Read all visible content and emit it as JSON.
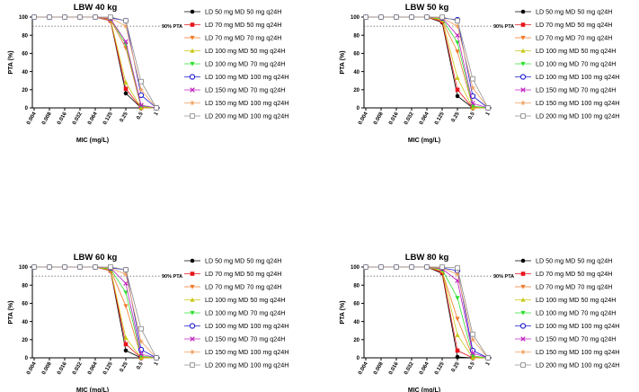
{
  "chart_data": [
    {
      "type": "line",
      "title": "LBW 40 kg",
      "xlabel": "MIC (mg/L)",
      "ylabel": "PTA (%)",
      "ylim": [
        0,
        100
      ],
      "yticks": [
        "0",
        "20",
        "40",
        "60",
        "80",
        "100"
      ],
      "categories": [
        "0.004",
        "0.008",
        "0.016",
        "0.032",
        "0.064",
        "0.125",
        "0.25",
        "0.5",
        "1"
      ],
      "reference_label": "90% PTA",
      "reference_value": 90,
      "series": [
        {
          "name": "LD 50 mg MD 50 mg q24H",
          "values": [
            100,
            100,
            100,
            100,
            100,
            96,
            16,
            0,
            0
          ]
        },
        {
          "name": "LD 70 mg MD 50 mg q24H",
          "values": [
            100,
            100,
            100,
            100,
            100,
            96,
            21,
            0,
            0
          ]
        },
        {
          "name": "LD 70 mg MD 70 mg q24H",
          "values": [
            100,
            100,
            100,
            100,
            100,
            97,
            66,
            1,
            0
          ]
        },
        {
          "name": "LD 100 mg MD 50 mg q24H",
          "values": [
            100,
            100,
            100,
            100,
            100,
            97,
            28,
            0,
            0
          ]
        },
        {
          "name": "LD 100 mg MD 70 mg q24H",
          "values": [
            100,
            100,
            100,
            100,
            100,
            98,
            70,
            2,
            0
          ]
        },
        {
          "name": "LD 100 mg MD 100 mg q24H",
          "values": [
            100,
            100,
            100,
            100,
            100,
            99,
            96,
            14,
            0
          ]
        },
        {
          "name": "LD 150 mg MD 70 mg q24H",
          "values": [
            100,
            100,
            100,
            100,
            100,
            98,
            73,
            3,
            0
          ]
        },
        {
          "name": "LD 150 mg MD 100 mg q24H",
          "values": [
            100,
            100,
            100,
            100,
            100,
            99,
            90,
            20,
            0
          ]
        },
        {
          "name": "LD 200 mg MD 100 mg q24H",
          "values": [
            100,
            100,
            100,
            100,
            100,
            100,
            96,
            29,
            0
          ]
        }
      ]
    },
    {
      "type": "line",
      "title": "LBW 50 kg",
      "xlabel": "MIC (mg/L)",
      "ylabel": "PTA (%)",
      "ylim": [
        0,
        100
      ],
      "yticks": [
        "0",
        "20",
        "40",
        "60",
        "80",
        "100"
      ],
      "categories": [
        "0.004",
        "0.008",
        "0.016",
        "0.032",
        "0.064",
        "0.125",
        "0.25",
        "0.5",
        "1"
      ],
      "reference_label": "90% PTA",
      "reference_value": 90,
      "series": [
        {
          "name": "LD 50 mg MD 50 mg q24H",
          "values": [
            100,
            100,
            100,
            100,
            100,
            94,
            13,
            0,
            0
          ]
        },
        {
          "name": "LD 70 mg MD 50 mg q24H",
          "values": [
            100,
            100,
            100,
            100,
            100,
            95,
            20,
            0,
            0
          ]
        },
        {
          "name": "LD 70 mg MD 70 mg q24H",
          "values": [
            100,
            100,
            100,
            100,
            100,
            96,
            62,
            1,
            0
          ]
        },
        {
          "name": "LD 100 mg MD 50 mg q24H",
          "values": [
            100,
            100,
            100,
            100,
            100,
            97,
            33,
            0,
            0
          ]
        },
        {
          "name": "LD 100 mg MD 70 mg q24H",
          "values": [
            100,
            100,
            100,
            100,
            100,
            98,
            72,
            2,
            0
          ]
        },
        {
          "name": "LD 100 mg MD 100 mg q24H",
          "values": [
            100,
            100,
            100,
            100,
            100,
            99,
            97,
            13,
            0
          ]
        },
        {
          "name": "LD 150 mg MD 70 mg q24H",
          "values": [
            100,
            100,
            100,
            100,
            100,
            99,
            80,
            5,
            0
          ]
        },
        {
          "name": "LD 150 mg MD 100 mg q24H",
          "values": [
            100,
            100,
            100,
            100,
            100,
            99,
            90,
            22,
            0
          ]
        },
        {
          "name": "LD 200 mg MD 100 mg q24H",
          "values": [
            100,
            100,
            100,
            100,
            100,
            100,
            96,
            32,
            0
          ]
        }
      ]
    },
    {
      "type": "line",
      "title": "LBW 60 kg",
      "xlabel": "MIC (mg/L)",
      "ylabel": "PTA (%)",
      "ylim": [
        0,
        100
      ],
      "yticks": [
        "0",
        "20",
        "40",
        "60",
        "80",
        "100"
      ],
      "categories": [
        "0.004",
        "0.008",
        "0.016",
        "0.032",
        "0.064",
        "0.125",
        "0.25",
        "0.5",
        "1"
      ],
      "reference_label": "90% PTA",
      "reference_value": 90,
      "series": [
        {
          "name": "LD 50 mg MD 50 mg q24H",
          "values": [
            100,
            100,
            100,
            100,
            100,
            96,
            8,
            0,
            0
          ]
        },
        {
          "name": "LD 70 mg MD 50 mg q24H",
          "values": [
            100,
            100,
            100,
            100,
            100,
            96,
            15,
            0,
            0
          ]
        },
        {
          "name": "LD 70 mg MD 70 mg q24H",
          "values": [
            100,
            100,
            100,
            100,
            100,
            97,
            57,
            1,
            0
          ]
        },
        {
          "name": "LD 100 mg MD 50 mg q24H",
          "values": [
            100,
            100,
            100,
            100,
            100,
            97,
            22,
            0,
            0
          ]
        },
        {
          "name": "LD 100 mg MD 70 mg q24H",
          "values": [
            100,
            100,
            100,
            100,
            100,
            98,
            72,
            2,
            0
          ]
        },
        {
          "name": "LD 100 mg MD 100 mg q24H",
          "values": [
            100,
            100,
            100,
            100,
            100,
            99,
            97,
            9,
            0
          ]
        },
        {
          "name": "LD 150 mg MD 70 mg q24H",
          "values": [
            100,
            100,
            100,
            100,
            100,
            99,
            82,
            4,
            0
          ]
        },
        {
          "name": "LD 150 mg MD 100 mg q24H",
          "values": [
            100,
            100,
            100,
            100,
            100,
            99,
            92,
            18,
            0
          ]
        },
        {
          "name": "LD 200 mg MD 100 mg q24H",
          "values": [
            100,
            100,
            100,
            100,
            100,
            100,
            97,
            32,
            0
          ]
        }
      ]
    },
    {
      "type": "line",
      "title": "LBW 80 kg",
      "xlabel": "MIC (mg/L)",
      "ylabel": "PTA (%)",
      "ylim": [
        0,
        100
      ],
      "yticks": [
        "0",
        "20",
        "40",
        "60",
        "80",
        "100"
      ],
      "categories": [
        "0.004",
        "0.008",
        "0.016",
        "0.032",
        "0.064",
        "0.125",
        "0.25",
        "0.5",
        "1"
      ],
      "reference_label": "90% PTA",
      "reference_value": 90,
      "series": [
        {
          "name": "LD 50 mg MD 50 mg q24H",
          "values": [
            100,
            100,
            100,
            100,
            100,
            93,
            1,
            0,
            0
          ]
        },
        {
          "name": "LD 70 mg MD 50 mg q24H",
          "values": [
            100,
            100,
            100,
            100,
            100,
            94,
            8,
            0,
            0
          ]
        },
        {
          "name": "LD 70 mg MD 70 mg q24H",
          "values": [
            100,
            100,
            100,
            100,
            100,
            95,
            43,
            1,
            0
          ]
        },
        {
          "name": "LD 100 mg MD 50 mg q24H",
          "values": [
            100,
            100,
            100,
            100,
            100,
            96,
            25,
            0,
            0
          ]
        },
        {
          "name": "LD 100 mg MD 70 mg q24H",
          "values": [
            100,
            100,
            100,
            100,
            100,
            97,
            66,
            2,
            0
          ]
        },
        {
          "name": "LD 100 mg MD 100 mg q24H",
          "values": [
            100,
            100,
            100,
            100,
            100,
            99,
            96,
            8,
            0
          ]
        },
        {
          "name": "LD 150 mg MD 70 mg q24H",
          "values": [
            100,
            100,
            100,
            100,
            100,
            98,
            85,
            5,
            0
          ]
        },
        {
          "name": "LD 150 mg MD 100 mg q24H",
          "values": [
            100,
            100,
            100,
            100,
            100,
            99,
            92,
            20,
            0
          ]
        },
        {
          "name": "LD 200 mg MD 100 mg q24H",
          "values": [
            100,
            100,
            100,
            100,
            100,
            100,
            99,
            26,
            0
          ]
        }
      ]
    }
  ],
  "series_style": [
    {
      "color": "#000000",
      "marker": "dot"
    },
    {
      "color": "#e8141b",
      "marker": "square"
    },
    {
      "color": "#f07a2a",
      "marker": "tri-down"
    },
    {
      "color": "#c8c814",
      "marker": "tri-up"
    },
    {
      "color": "#30e030",
      "marker": "tri-down"
    },
    {
      "color": "#1c1cd0",
      "marker": "circle"
    },
    {
      "color": "#c020c0",
      "marker": "cross"
    },
    {
      "color": "#f0a060",
      "marker": "star"
    },
    {
      "color": "#909090",
      "marker": "open-square"
    }
  ]
}
